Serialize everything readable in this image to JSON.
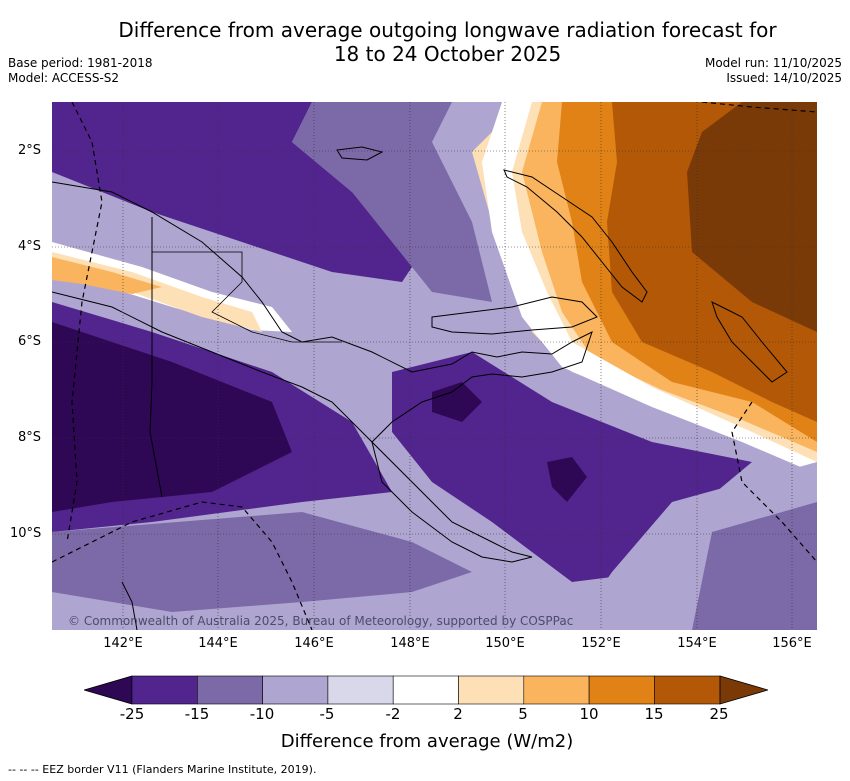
{
  "title": {
    "line1": "Difference from average outgoing longwave radiation forecast for",
    "line2": "18 to 24 October 2025"
  },
  "meta": {
    "base_period": "Base period: 1981-2018",
    "model": "Model: ACCESS-S2",
    "model_run": "Model run: 11/10/2025",
    "issued": "Issued: 14/10/2025"
  },
  "map": {
    "lat_labels": [
      "2°S",
      "4°S",
      "6°S",
      "8°S",
      "10°S"
    ],
    "lon_labels": [
      "142°E",
      "144°E",
      "146°E",
      "148°E",
      "150°E",
      "152°E",
      "154°E",
      "156°E"
    ],
    "copyright": "© Commonwealth of Australia 2025, Bureau of Meteorology, supported by COSPPac",
    "eez_note": "--  --  -- EEZ border V11 (Flanders Marine Institute, 2019)."
  },
  "colorbar": {
    "labels": [
      "-25",
      "-15",
      "-10",
      "-5",
      "-2",
      "2",
      "5",
      "10",
      "15",
      "25"
    ],
    "colors": [
      "#2e0854",
      "#52258e",
      "#7c6aa8",
      "#aea6d0",
      "#d8d8ea",
      "#ffffff",
      "#fee0b6",
      "#fbb45e",
      "#e08216",
      "#b35806",
      "#7a3a08"
    ],
    "title": "Difference from average (W/m2)"
  }
}
